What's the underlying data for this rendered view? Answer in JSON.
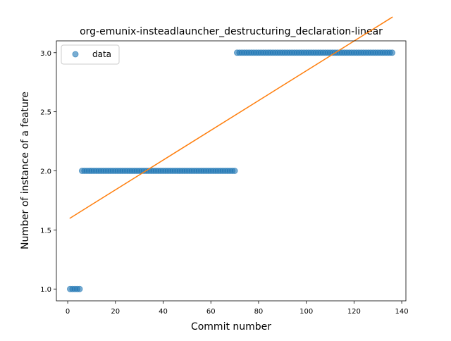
{
  "colors": {
    "data_points": "#1f77b4",
    "fit_line": "#ff7f0e",
    "axes": "#000000",
    "background": "#ffffff"
  },
  "chart_data": {
    "type": "scatter",
    "title": "org-emunix-insteadlauncher_destructuring_declaration-linear",
    "xlabel": "Commit number",
    "ylabel": "Number of instance of a feature",
    "xlim": [
      -4.75,
      141.75
    ],
    "ylim": [
      0.9,
      3.1
    ],
    "xticks": [
      0,
      20,
      40,
      60,
      80,
      100,
      120,
      140
    ],
    "xtick_labels": [
      "0",
      "20",
      "40",
      "60",
      "80",
      "100",
      "120",
      "140"
    ],
    "yticks": [
      1.0,
      1.5,
      2.0,
      2.5,
      3.0
    ],
    "ytick_labels": [
      "1.0",
      "1.5",
      "2.0",
      "2.5",
      "3.0"
    ],
    "grid": false,
    "legend": {
      "placement": "top-left",
      "entries": [
        "data"
      ]
    },
    "series": [
      {
        "name": "data",
        "kind": "scatter",
        "color": "#1f77b4",
        "segments": [
          {
            "x_start": 1,
            "x_end": 5,
            "y": 1
          },
          {
            "x_start": 6,
            "x_end": 70,
            "y": 2
          },
          {
            "x_start": 71,
            "x_end": 136,
            "y": 3
          }
        ]
      },
      {
        "kind": "line",
        "color": "#ff7f0e",
        "x": [
          1,
          136
        ],
        "y": [
          1.6,
          3.3
        ]
      }
    ]
  }
}
